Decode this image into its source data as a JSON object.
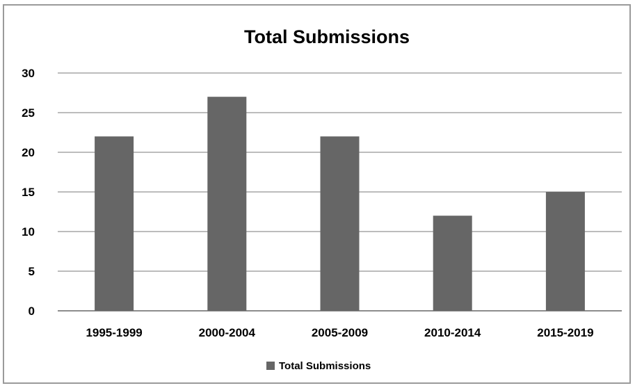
{
  "chart_data": {
    "type": "bar",
    "title": "Total Submissions",
    "xlabel": "",
    "ylabel": "",
    "categories": [
      "1995-1999",
      "2000-2004",
      "2005-2009",
      "2010-2014",
      "2015-2019"
    ],
    "series": [
      {
        "name": "Total Submissions",
        "values": [
          22,
          27,
          22,
          12,
          15
        ],
        "color": "#666666"
      }
    ],
    "ylim": [
      0,
      30
    ],
    "yticks": [
      0,
      5,
      10,
      15,
      20,
      25,
      30
    ],
    "grid": true,
    "legend": "bottom"
  }
}
